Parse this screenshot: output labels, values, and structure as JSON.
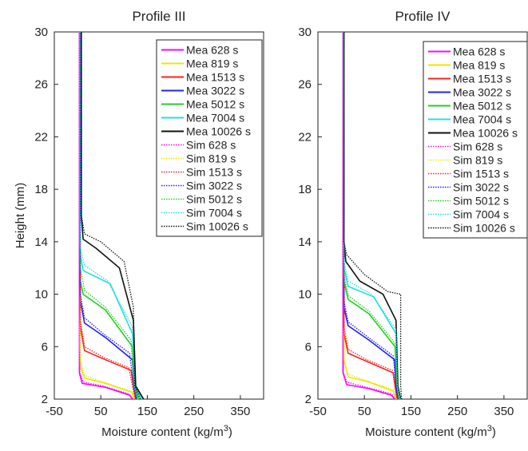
{
  "chart_data": [
    {
      "type": "line",
      "title": "Profile III",
      "xlabel": "Moisture content (kg/m",
      "xlabel_sup": "3",
      "xlabel_tail": ")",
      "ylabel": "Height (mm)",
      "xlim": [
        -50,
        400
      ],
      "ylim": [
        2,
        30
      ],
      "xticks": [
        -50,
        50,
        150,
        250,
        350
      ],
      "yticks": [
        2,
        6,
        10,
        14,
        18,
        22,
        26,
        30
      ],
      "legend_position": "top-right",
      "series": [
        {
          "name": "Mea 628 s",
          "color": "#ff00ff",
          "dash": "solid",
          "x": [
            118,
            112,
            60,
            10,
            4,
            4
          ],
          "y": [
            2,
            2.3,
            2.9,
            3.2,
            4,
            30
          ]
        },
        {
          "name": "Mea 819 s",
          "color": "#e8e800",
          "dash": "solid",
          "x": [
            122,
            118,
            60,
            15,
            6,
            5,
            5
          ],
          "y": [
            2,
            2.5,
            3.2,
            3.6,
            4.5,
            6,
            30
          ]
        },
        {
          "name": "Mea 1513 s",
          "color": "#ff2020",
          "dash": "solid",
          "x": [
            125,
            120,
            115,
            60,
            15,
            6,
            5,
            5
          ],
          "y": [
            2,
            3,
            4.2,
            5,
            5.7,
            7.5,
            9,
            30
          ]
        },
        {
          "name": "Mea 3022 s",
          "color": "#2020ff",
          "dash": "solid",
          "x": [
            128,
            122,
            118,
            60,
            15,
            6,
            5,
            5
          ],
          "y": [
            2,
            3,
            5,
            6.7,
            7.8,
            9.5,
            11,
            30
          ]
        },
        {
          "name": "Mea 5012 s",
          "color": "#20d020",
          "dash": "solid",
          "x": [
            132,
            123,
            118,
            60,
            12,
            6,
            5,
            5
          ],
          "y": [
            2,
            3,
            6,
            8.8,
            10,
            11,
            13,
            30
          ]
        },
        {
          "name": "Mea 7004 s",
          "color": "#20e0e0",
          "dash": "solid",
          "x": [
            138,
            124,
            118,
            70,
            12,
            6,
            5,
            5
          ],
          "y": [
            2,
            3,
            7,
            10.8,
            11.8,
            13,
            14,
            30
          ]
        },
        {
          "name": "Mea 10026 s",
          "color": "#111111",
          "dash": "solid",
          "x": [
            142,
            125,
            120,
            90,
            40,
            12,
            8,
            8
          ],
          "y": [
            2,
            3,
            8,
            12,
            13.5,
            14.2,
            16,
            30
          ]
        },
        {
          "name": "Sim 628 s",
          "color": "#ff00ff",
          "dash": "dotted",
          "x": [
            120,
            110,
            55,
            12,
            5,
            5
          ],
          "y": [
            2,
            2.4,
            3,
            3.3,
            4,
            30
          ]
        },
        {
          "name": "Sim 819 s",
          "color": "#e8e800",
          "dash": "dotted",
          "x": [
            122,
            115,
            55,
            15,
            6,
            5
          ],
          "y": [
            2,
            2.6,
            3.3,
            3.8,
            5,
            30
          ]
        },
        {
          "name": "Sim 1513 s",
          "color": "#ff2020",
          "dash": "dotted",
          "x": [
            124,
            118,
            110,
            55,
            15,
            6,
            5
          ],
          "y": [
            2,
            3,
            4.4,
            5.2,
            6,
            8,
            30
          ]
        },
        {
          "name": "Sim 3022 s",
          "color": "#2020ff",
          "dash": "dotted",
          "x": [
            126,
            120,
            112,
            55,
            15,
            6,
            5
          ],
          "y": [
            2,
            3,
            5.5,
            7,
            8.2,
            10,
            30
          ]
        },
        {
          "name": "Sim 5012 s",
          "color": "#20d020",
          "dash": "dotted",
          "x": [
            128,
            121,
            115,
            60,
            15,
            6,
            5
          ],
          "y": [
            2,
            3,
            6.5,
            9,
            10.3,
            12,
            30
          ]
        },
        {
          "name": "Sim 7004 s",
          "color": "#20e0e0",
          "dash": "dotted",
          "x": [
            130,
            122,
            118,
            65,
            15,
            6,
            5
          ],
          "y": [
            2,
            3,
            7.5,
            11,
            12.2,
            13.5,
            30
          ]
        },
        {
          "name": "Sim 10026 s",
          "color": "#111111",
          "dash": "dotted",
          "x": [
            135,
            123,
            120,
            100,
            50,
            15,
            8,
            8
          ],
          "y": [
            2,
            3,
            9,
            12.5,
            14,
            14.6,
            16,
            30
          ]
        }
      ]
    },
    {
      "type": "line",
      "title": "Profile IV",
      "xlabel": "Moisture content (kg/m",
      "xlabel_sup": "3",
      "xlabel_tail": ")",
      "ylabel": "",
      "xlim": [
        -50,
        400
      ],
      "ylim": [
        2,
        30
      ],
      "xticks": [
        -50,
        50,
        150,
        250,
        350
      ],
      "yticks": [
        2,
        6,
        10,
        14,
        18,
        22,
        26,
        30
      ],
      "legend_position": "top-right",
      "series": [
        {
          "name": "Mea 628 s",
          "color": "#ff00ff",
          "dash": "solid",
          "x": [
            115,
            108,
            60,
            12,
            4,
            4
          ],
          "y": [
            2,
            2.3,
            2.8,
            3.1,
            4,
            30
          ]
        },
        {
          "name": "Mea 819 s",
          "color": "#e8e800",
          "dash": "solid",
          "x": [
            118,
            112,
            60,
            15,
            6,
            5
          ],
          "y": [
            2,
            2.6,
            3.3,
            3.7,
            5,
            30
          ]
        },
        {
          "name": "Mea 1513 s",
          "color": "#ff2020",
          "dash": "solid",
          "x": [
            120,
            116,
            112,
            60,
            15,
            6,
            5
          ],
          "y": [
            2,
            3,
            4,
            4.8,
            5.5,
            7,
            30
          ]
        },
        {
          "name": "Mea 3022 s",
          "color": "#2020ff",
          "dash": "solid",
          "x": [
            122,
            118,
            115,
            60,
            15,
            6,
            5
          ],
          "y": [
            2,
            3,
            5,
            6.5,
            7.6,
            9,
            30
          ]
        },
        {
          "name": "Mea 5012 s",
          "color": "#20d020",
          "dash": "solid",
          "x": [
            124,
            120,
            116,
            60,
            15,
            6,
            5
          ],
          "y": [
            2,
            3,
            6,
            8.5,
            9.6,
            11,
            30
          ]
        },
        {
          "name": "Mea 7004 s",
          "color": "#20e0e0",
          "dash": "solid",
          "x": [
            126,
            121,
            118,
            70,
            15,
            6,
            5
          ],
          "y": [
            2,
            3,
            7,
            9.8,
            10.6,
            12,
            30
          ]
        },
        {
          "name": "Mea 10026 s",
          "color": "#111111",
          "dash": "solid",
          "x": [
            128,
            122,
            118,
            90,
            40,
            10,
            6,
            6
          ],
          "y": [
            2,
            3,
            8,
            10,
            11,
            12.5,
            14,
            30
          ]
        },
        {
          "name": "Sim 628 s",
          "color": "#ff00ff",
          "dash": "dotted",
          "x": [
            117,
            108,
            55,
            12,
            5,
            5
          ],
          "y": [
            2,
            2.4,
            2.9,
            3.3,
            4,
            30
          ]
        },
        {
          "name": "Sim 819 s",
          "color": "#e8e800",
          "dash": "dotted",
          "x": [
            119,
            113,
            55,
            15,
            6,
            5
          ],
          "y": [
            2,
            2.7,
            3.4,
            3.9,
            5,
            30
          ]
        },
        {
          "name": "Sim 1513 s",
          "color": "#ff2020",
          "dash": "dotted",
          "x": [
            121,
            116,
            110,
            55,
            15,
            6,
            5
          ],
          "y": [
            2,
            3,
            4.2,
            5,
            5.8,
            7.5,
            30
          ]
        },
        {
          "name": "Sim 3022 s",
          "color": "#2020ff",
          "dash": "dotted",
          "x": [
            123,
            118,
            112,
            55,
            15,
            6,
            5
          ],
          "y": [
            2,
            3,
            5.3,
            6.8,
            7.9,
            9.5,
            30
          ]
        },
        {
          "name": "Sim 5012 s",
          "color": "#20d020",
          "dash": "dotted",
          "x": [
            125,
            120,
            115,
            60,
            15,
            6,
            5
          ],
          "y": [
            2,
            3,
            6.3,
            8.7,
            9.9,
            11.5,
            30
          ]
        },
        {
          "name": "Sim 7004 s",
          "color": "#20e0e0",
          "dash": "dotted",
          "x": [
            127,
            121,
            118,
            65,
            15,
            6,
            5
          ],
          "y": [
            2,
            3,
            7.3,
            10,
            11,
            12.5,
            30
          ]
        },
        {
          "name": "Sim 10026 s",
          "color": "#111111",
          "dash": "dotted",
          "x": [
            130,
            128,
            128,
            100,
            50,
            12,
            6,
            6
          ],
          "y": [
            2,
            3,
            10,
            10.2,
            11.5,
            13,
            14,
            30
          ]
        }
      ]
    }
  ]
}
